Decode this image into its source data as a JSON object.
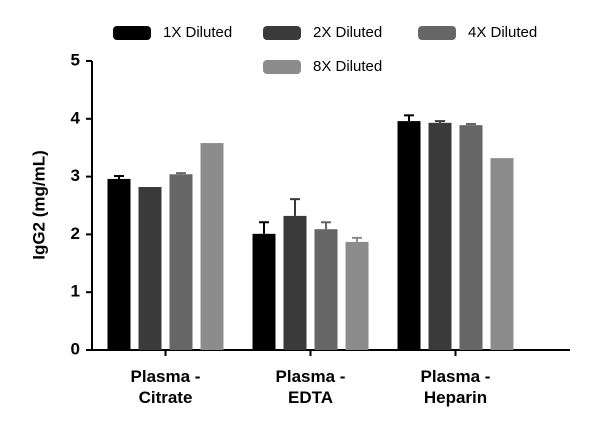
{
  "chart_data": {
    "type": "bar",
    "y_label": "IgG2 (mg/mL)",
    "categories": [
      "Plasma - Citrate",
      "Plasma - EDTA",
      "Plasma - Heparin"
    ],
    "series": [
      {
        "name": "1X Diluted",
        "color": "#000000",
        "values": [
          2.96,
          2.01,
          3.96
        ],
        "errors": [
          0.05,
          0.2,
          0.1
        ]
      },
      {
        "name": "2X Diluted",
        "color": "#3a3a3a",
        "values": [
          2.82,
          2.32,
          3.93
        ],
        "errors": [
          null,
          0.29,
          0.03
        ]
      },
      {
        "name": "4X Diluted",
        "color": "#666666",
        "values": [
          3.04,
          2.09,
          3.89
        ],
        "errors": [
          0.02,
          0.12,
          0.02
        ]
      },
      {
        "name": "8X Diluted",
        "color": "#8c8c8c",
        "values": [
          3.58,
          1.87,
          3.32
        ],
        "errors": [
          null,
          0.07,
          null
        ]
      }
    ],
    "ylim": [
      0,
      5
    ],
    "yticks": [
      0,
      1,
      2,
      3,
      4,
      5
    ]
  }
}
